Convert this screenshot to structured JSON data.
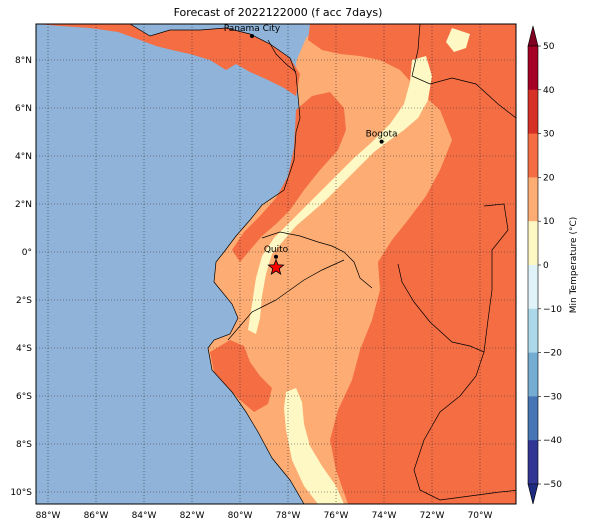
{
  "title": "Forecast of 2022122000 (f acc 7days)",
  "colors": {
    "ocean": "#8fb3d9",
    "band_0_10": "#fef8c4",
    "band_10_20": "#fdad73",
    "band_20_30": "#f46d43",
    "band_30_40": "#d73027",
    "land_outline": "#000000",
    "grid": "#333333",
    "marker_fill": "#ff0000"
  },
  "map": {
    "lon_range": [
      -88.5,
      -68.5
    ],
    "lat_range": [
      -10.5,
      9.5
    ],
    "lon_ticks": [
      "88°W",
      "86°W",
      "84°W",
      "82°W",
      "80°W",
      "78°W",
      "76°W",
      "74°W",
      "72°W",
      "70°W"
    ],
    "lat_ticks": [
      "8°N",
      "6°N",
      "4°N",
      "2°N",
      "0°",
      "2°S",
      "4°S",
      "6°S",
      "8°S",
      "10°S"
    ],
    "cities": [
      {
        "name": "Panama City",
        "lon": -79.5,
        "lat": 9.0
      },
      {
        "name": "Bogota",
        "lon": -74.1,
        "lat": 4.6
      },
      {
        "name": "Quito",
        "lon": -78.5,
        "lat": -0.2
      }
    ],
    "marker": {
      "icon": "star-icon",
      "lon": -78.5,
      "lat": -0.65
    }
  },
  "colorbar": {
    "label": "Min Temperature (°C)",
    "ticks": [
      "50",
      "40",
      "30",
      "20",
      "10",
      "0",
      "−10",
      "−20",
      "−30",
      "−40",
      "−50"
    ],
    "levels": [
      {
        "from": 40,
        "to": 50,
        "color": "#a50026"
      },
      {
        "from": 30,
        "to": 40,
        "color": "#d73027"
      },
      {
        "from": 20,
        "to": 30,
        "color": "#f46d43"
      },
      {
        "from": 10,
        "to": 20,
        "color": "#fdad73"
      },
      {
        "from": 0,
        "to": 10,
        "color": "#fef8c4"
      },
      {
        "from": -10,
        "to": 0,
        "color": "#e0f3f8"
      },
      {
        "from": -20,
        "to": -10,
        "color": "#abd9e9"
      },
      {
        "from": -30,
        "to": -20,
        "color": "#74add1"
      },
      {
        "from": -40,
        "to": -30,
        "color": "#4575b4"
      },
      {
        "from": -50,
        "to": -40,
        "color": "#313695"
      }
    ],
    "extend_max_color": "#800020",
    "extend_min_color": "#1d2a80"
  }
}
